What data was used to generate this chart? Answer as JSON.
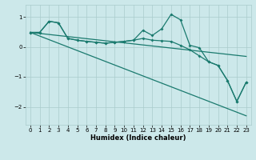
{
  "xlabel": "Humidex (Indice chaleur)",
  "bg_color": "#cce8ea",
  "grid_color": "#aacccc",
  "line_color": "#1a7a6e",
  "xlim": [
    -0.5,
    23.5
  ],
  "ylim": [
    -2.6,
    1.4
  ],
  "yticks": [
    -2,
    -1,
    0,
    1
  ],
  "xticks": [
    0,
    1,
    2,
    3,
    4,
    5,
    6,
    7,
    8,
    9,
    10,
    11,
    12,
    13,
    14,
    15,
    16,
    17,
    18,
    19,
    20,
    21,
    22,
    23
  ],
  "trend_line": [
    [
      0,
      0.48
    ],
    [
      23,
      -0.32
    ]
  ],
  "steep_line": [
    [
      0,
      0.48
    ],
    [
      23,
      -2.3
    ]
  ],
  "jagged": [
    0.48,
    0.48,
    0.85,
    0.8,
    0.28,
    0.22,
    0.18,
    0.15,
    0.12,
    0.15,
    0.18,
    0.22,
    0.55,
    0.38,
    0.6,
    1.08,
    0.9,
    0.05,
    -0.03,
    -0.5,
    -0.62,
    -1.12,
    -1.82,
    -1.18
  ],
  "flat_then_down": [
    0.48,
    0.48,
    0.85,
    0.8,
    0.28,
    0.22,
    0.18,
    0.15,
    0.12,
    0.15,
    0.18,
    0.22,
    0.28,
    0.22,
    0.2,
    0.18,
    0.05,
    -0.1,
    -0.3,
    -0.5,
    -0.62,
    -1.12,
    -1.82,
    -1.18
  ]
}
